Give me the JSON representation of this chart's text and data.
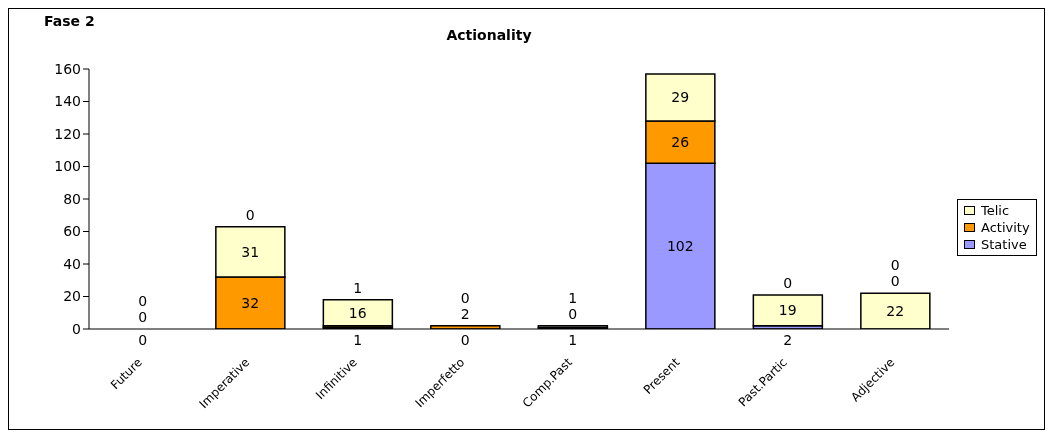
{
  "chart_data": {
    "type": "bar",
    "title": "Actionality",
    "annotations": [
      "Fase 2"
    ],
    "categories": [
      "Future",
      "Imperative",
      "Infinitive",
      "Imperfetto",
      "Comp.Past",
      "Present",
      "Past.Partic",
      "Adjective"
    ],
    "series": [
      {
        "name": "Stative",
        "color": "#9999ff",
        "values": [
          0,
          0,
          1,
          0,
          1,
          102,
          2,
          0
        ]
      },
      {
        "name": "Activity",
        "color": "#ff9900",
        "values": [
          0,
          32,
          1,
          2,
          0,
          26,
          0,
          0
        ]
      },
      {
        "name": "Telic",
        "color": "#ffffcc",
        "values": [
          0,
          31,
          16,
          0,
          1,
          29,
          19,
          22
        ]
      }
    ],
    "stacked": true,
    "data_labels": true,
    "ylim": [
      0,
      160
    ],
    "yticks": [
      0,
      20,
      40,
      60,
      80,
      100,
      120,
      140,
      160
    ],
    "grid": false,
    "legend": "right"
  }
}
